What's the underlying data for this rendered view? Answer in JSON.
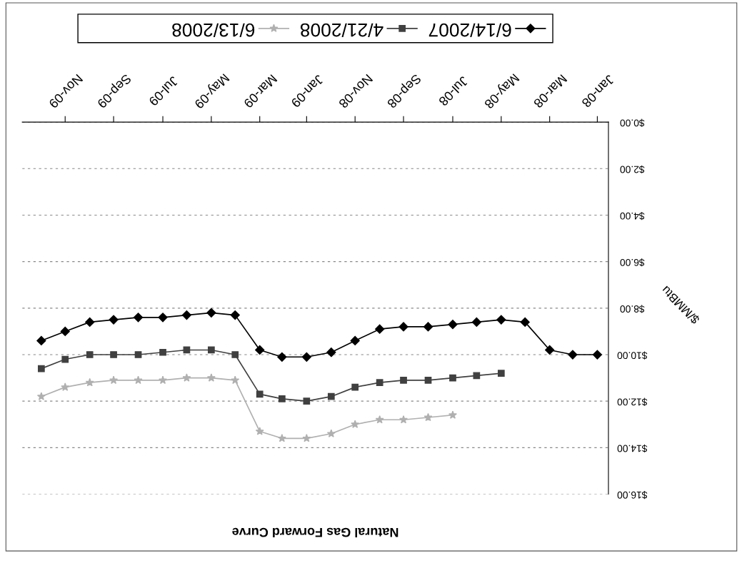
{
  "chart_data": {
    "type": "line",
    "title": "Natural Gas Forward Curve",
    "ylabel": "$/MMBtu",
    "x": [
      "2008-01",
      "2008-02",
      "2008-03",
      "2008-04",
      "2008-05",
      "2008-06",
      "2008-07",
      "2008-08",
      "2008-09",
      "2008-10",
      "2008-11",
      "2008-12",
      "2009-01",
      "2009-02",
      "2009-03",
      "2009-04",
      "2009-05",
      "2009-06",
      "2009-07",
      "2009-08",
      "2009-09",
      "2009-10",
      "2009-11",
      "2009-12"
    ],
    "series": [
      {
        "name": "6/14/2007",
        "color": "#000000",
        "marker": "diamond",
        "values": [
          10.0,
          10.0,
          9.8,
          8.6,
          8.5,
          8.6,
          8.7,
          8.8,
          8.8,
          8.9,
          9.4,
          9.9,
          10.1,
          10.1,
          9.8,
          8.3,
          8.2,
          8.3,
          8.4,
          8.4,
          8.5,
          8.6,
          9.0,
          9.4
        ]
      },
      {
        "name": "4/21/2008",
        "color": "#404040",
        "marker": "square",
        "values": [
          null,
          null,
          null,
          null,
          10.8,
          10.9,
          11.0,
          11.1,
          11.1,
          11.2,
          11.4,
          11.8,
          12.0,
          11.9,
          11.7,
          10.0,
          9.8,
          9.8,
          9.9,
          10.0,
          10.0,
          10.0,
          10.2,
          10.6
        ]
      },
      {
        "name": "6/13/2008",
        "color": "#b0b0b0",
        "marker": "star",
        "values": [
          null,
          null,
          null,
          null,
          null,
          null,
          12.6,
          12.7,
          12.8,
          12.8,
          13.0,
          13.4,
          13.6,
          13.6,
          13.3,
          11.1,
          11.0,
          11.0,
          11.1,
          11.1,
          11.1,
          11.2,
          11.4,
          11.8
        ]
      }
    ],
    "xlim": [
      "2009-12-25",
      "2007-12-18"
    ],
    "xticks": [
      {
        "value": "2008-01",
        "label": "Jan-08"
      },
      {
        "value": "2008-03",
        "label": "Mar-08"
      },
      {
        "value": "2008-05",
        "label": "May-08"
      },
      {
        "value": "2008-07",
        "label": "Jul-08"
      },
      {
        "value": "2008-09",
        "label": "Sep-08"
      },
      {
        "value": "2008-11",
        "label": "Nov-08"
      },
      {
        "value": "2009-01",
        "label": "Jan-09"
      },
      {
        "value": "2009-03",
        "label": "Mar-09"
      },
      {
        "value": "2009-05",
        "label": "May-09"
      },
      {
        "value": "2009-07",
        "label": "Jul-09"
      },
      {
        "value": "2009-09",
        "label": "Sep-09"
      },
      {
        "value": "2009-11",
        "label": "Nov-09"
      }
    ],
    "ylim": [
      16,
      0
    ],
    "yticks": [
      {
        "value": 0,
        "label": "$0.00"
      },
      {
        "value": 2,
        "label": "$2.00"
      },
      {
        "value": 4,
        "label": "$4.00"
      },
      {
        "value": 6,
        "label": "$6.00"
      },
      {
        "value": 8,
        "label": "$8.00"
      },
      {
        "value": 10,
        "label": "$10.00"
      },
      {
        "value": 12,
        "label": "$12.00"
      },
      {
        "value": 14,
        "label": "$14.00"
      },
      {
        "value": 16,
        "label": "$16.00"
      }
    ],
    "grid": "y",
    "legend": "top",
    "line_style": "solid"
  }
}
